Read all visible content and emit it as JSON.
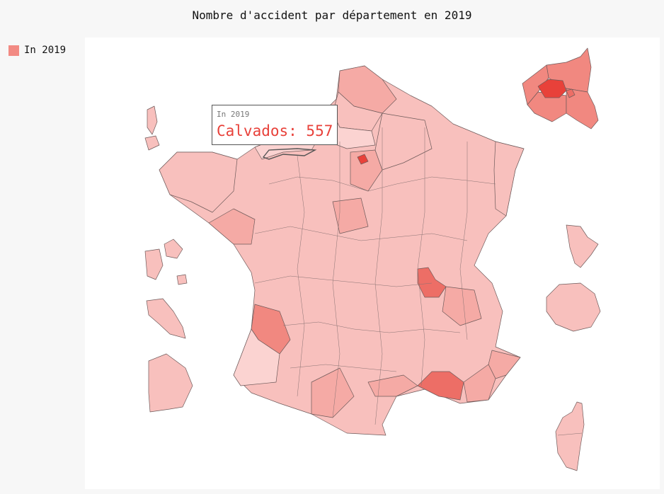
{
  "title": "Nombre d'accident par département en 2019",
  "legend": {
    "label": "In 2019",
    "color": "#f28a83"
  },
  "tooltip": {
    "series": "In 2019",
    "label": "Calvados: 557"
  },
  "map": {
    "colors": {
      "very_light": "#fbd3d1",
      "light": "#f8c0bd",
      "medium": "#f5aaa5",
      "strong": "#f18880",
      "darker": "#ed6e66",
      "max": "#e8413a",
      "stroke": "#6e5a5a"
    }
  }
}
